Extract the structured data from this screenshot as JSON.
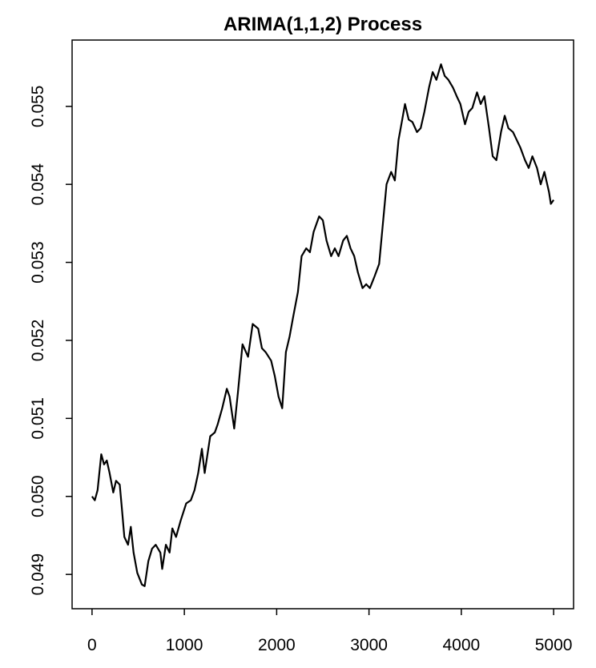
{
  "chart_data": {
    "type": "line",
    "title": "ARIMA(1,1,2) Process",
    "color": "#000000",
    "x": [
      0,
      30,
      60,
      100,
      130,
      160,
      190,
      230,
      260,
      300,
      320,
      350,
      390,
      420,
      450,
      490,
      540,
      570,
      610,
      650,
      690,
      740,
      760,
      800,
      840,
      870,
      910,
      960,
      1020,
      1070,
      1110,
      1150,
      1190,
      1220,
      1280,
      1330,
      1360,
      1410,
      1460,
      1490,
      1540,
      1580,
      1630,
      1690,
      1740,
      1800,
      1840,
      1880,
      1940,
      1980,
      2020,
      2060,
      2100,
      2140,
      2180,
      2230,
      2270,
      2320,
      2360,
      2400,
      2460,
      2500,
      2540,
      2590,
      2630,
      2670,
      2720,
      2760,
      2800,
      2840,
      2880,
      2930,
      2970,
      3010,
      3060,
      3110,
      3150,
      3190,
      3240,
      3280,
      3320,
      3360,
      3390,
      3430,
      3470,
      3520,
      3560,
      3600,
      3650,
      3690,
      3730,
      3780,
      3820,
      3860,
      3910,
      3950,
      3990,
      4040,
      4080,
      4120,
      4170,
      4210,
      4250,
      4300,
      4340,
      4380,
      4430,
      4470,
      4510,
      4560,
      4600,
      4640,
      4690,
      4730,
      4770,
      4820,
      4860,
      4900,
      4950,
      4970,
      5000
    ],
    "values": [
      0.05,
      0.04995,
      0.05008,
      0.05054,
      0.05041,
      0.05046,
      0.0503,
      0.05005,
      0.0502,
      0.05015,
      0.04989,
      0.04948,
      0.04938,
      0.04961,
      0.04928,
      0.04902,
      0.04887,
      0.04885,
      0.04917,
      0.04933,
      0.04938,
      0.04928,
      0.04907,
      0.04938,
      0.04928,
      0.04959,
      0.04948,
      0.04969,
      0.04991,
      0.04995,
      0.05008,
      0.0503,
      0.05061,
      0.0503,
      0.05077,
      0.05082,
      0.05092,
      0.05113,
      0.05138,
      0.05128,
      0.05087,
      0.05133,
      0.05195,
      0.05179,
      0.05221,
      0.05215,
      0.0519,
      0.05185,
      0.05174,
      0.05154,
      0.05128,
      0.05113,
      0.05185,
      0.05205,
      0.05231,
      0.05262,
      0.05308,
      0.05318,
      0.05313,
      0.05339,
      0.05359,
      0.05354,
      0.05328,
      0.05308,
      0.05318,
      0.05308,
      0.05328,
      0.05334,
      0.05318,
      0.05308,
      0.05287,
      0.05267,
      0.05272,
      0.05267,
      0.05282,
      0.05298,
      0.05349,
      0.054,
      0.05416,
      0.05405,
      0.05457,
      0.05483,
      0.05503,
      0.05483,
      0.0548,
      0.05467,
      0.05472,
      0.05493,
      0.05524,
      0.05544,
      0.05534,
      0.05554,
      0.05539,
      0.05534,
      0.05524,
      0.05513,
      0.05503,
      0.05477,
      0.05493,
      0.05498,
      0.05518,
      0.05503,
      0.05513,
      0.05472,
      0.05436,
      0.05431,
      0.05467,
      0.05488,
      0.05472,
      0.05467,
      0.05457,
      0.05447,
      0.05431,
      0.05421,
      0.05436,
      0.05421,
      0.054,
      0.05416,
      0.0539,
      0.05375,
      0.0538
    ],
    "xlim": [
      -216,
      5216
    ],
    "xticks": [
      0,
      1000,
      2000,
      3000,
      4000,
      5000
    ],
    "ylim": [
      0.04856,
      0.05585
    ],
    "yticks": [
      0.049,
      {
        "value": 0.05,
        "label": "0.050"
      },
      0.051,
      0.052,
      0.053,
      0.054,
      0.055
    ],
    "grid": false
  }
}
